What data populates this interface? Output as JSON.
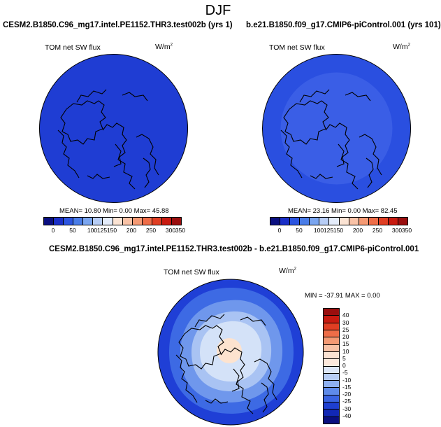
{
  "main_title": "DJF",
  "panels": [
    {
      "case_title": "CESM2.B1850.C96_mg17.intel.PE1152.THR3.test002b (yrs 1)",
      "variable": "TOM net SW flux",
      "units_base": "W/m",
      "units_sup": "2",
      "stats": "MEAN=  10.80  Min=   0.00  Max=  45.88"
    },
    {
      "case_title": "b.e21.B1850.f09_g17.CMIP6-piControl.001 (yrs 101)",
      "variable": "TOM net SW flux",
      "units_base": "W/m",
      "units_sup": "2",
      "stats": "MEAN=  23.16  Min=   0.00  Max=  82.45"
    }
  ],
  "diff_panel": {
    "case_title": "CESM2.B1850.C96_mg17.intel.PE1152.THR3.test002b - b.e21.B1850.f09_g17.CMIP6-piControl.001",
    "variable": "TOM net SW flux",
    "units_base": "W/m",
    "units_sup": "2",
    "stats": "MIN = -37.91 MAX =   0.00"
  },
  "abs_colorbar": {
    "labels": [
      "0",
      "50",
      "100",
      "125",
      "150",
      "200",
      "250",
      "300",
      "350"
    ],
    "colors": [
      "#0a0f80",
      "#1a2fc7",
      "#2c55e0",
      "#4a7de8",
      "#7aa5ef",
      "#b7cdf5",
      "#e4ecfa",
      "#fbe3d3",
      "#f9c2a6",
      "#f59a74",
      "#ee6d48",
      "#e03e23",
      "#c81a10",
      "#9a0e0e"
    ]
  },
  "diff_colorbar": {
    "labels": [
      "40",
      "30",
      "25",
      "20",
      "15",
      "10",
      "5",
      "0",
      "-5",
      "-10",
      "-15",
      "-20",
      "-25",
      "-30",
      "-40"
    ],
    "colors": [
      "#9a0e0e",
      "#c81a10",
      "#e03e23",
      "#ee6d48",
      "#f59a74",
      "#f9c2a6",
      "#fbe3d3",
      "#fde9dc",
      "#dde7f8",
      "#b7cdf5",
      "#8fb1f1",
      "#5f8bea",
      "#3a64e2",
      "#1e3fd1",
      "#1228b5",
      "#0a0f80"
    ]
  },
  "map_colors": {
    "left_field": "#1f3dd3",
    "right_outer": "#2a4fe0",
    "right_inner": "#3a5ee6",
    "diff_outer": "#1f3fd6",
    "diff_mid1": "#3d6ae4",
    "diff_mid2": "#6f97ec",
    "diff_mid3": "#a9c3f3",
    "diff_mid4": "#d4e2f8",
    "diff_center": "#fde3cf",
    "coast": "#000000"
  }
}
